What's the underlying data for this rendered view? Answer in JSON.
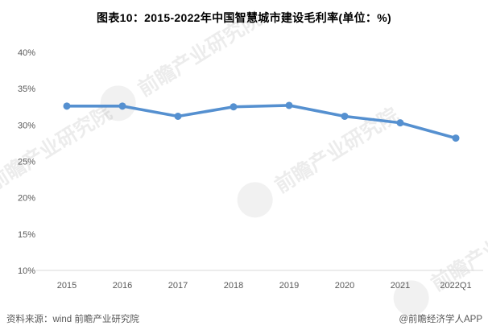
{
  "title": "图表10：2015-2022年中国智慧城市建设毛利率(单位：%)",
  "footer": {
    "source_note": "资料来源：wind 前瞻产业研究院",
    "credit": "@前瞻经济学人APP"
  },
  "watermark": {
    "text": "前瞻产业研究院"
  },
  "colors": {
    "line": "#5590d0",
    "axis_line": "#d9d9d9",
    "tick_text": "#595959",
    "title_text": "#000000",
    "footer_text": "#595959",
    "background": "#ffffff"
  },
  "chart_data": {
    "type": "line",
    "title": "图表10：2015-2022年中国智慧城市建设毛利率(单位：%)",
    "categories": [
      "2015",
      "2016",
      "2017",
      "2018",
      "2019",
      "2020",
      "2021",
      "2022Q1"
    ],
    "series": [
      {
        "name": "智慧城市建设毛利率",
        "values": [
          32.6,
          32.6,
          31.2,
          32.5,
          32.7,
          31.2,
          30.3,
          28.2
        ]
      }
    ],
    "xlabel": "",
    "ylabel": "",
    "unit": "%",
    "ylim": [
      10,
      40
    ],
    "yticks": [
      10,
      15,
      20,
      25,
      30,
      35,
      40
    ],
    "ytick_suffix": "%",
    "grid": false,
    "legend": "none",
    "marker": "circle"
  }
}
